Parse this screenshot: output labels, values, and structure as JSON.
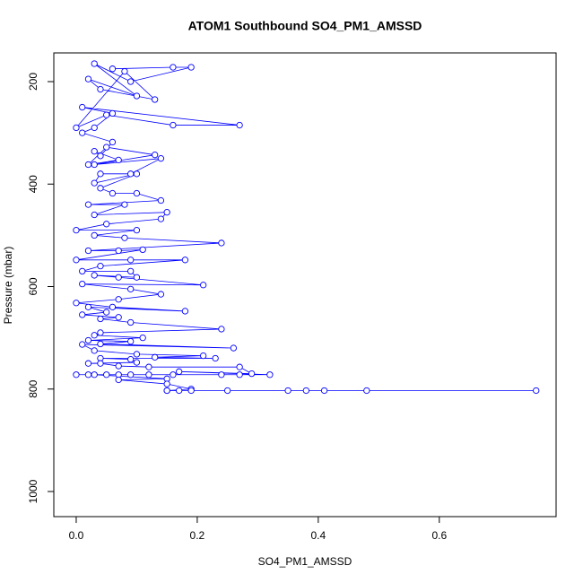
{
  "chart_data": {
    "type": "line-points",
    "title": "ATOM1 Southbound SO4_PM1_AMSSD",
    "xlabel": "SO4_PM1_AMSSD",
    "ylabel": "Pressure (mbar)",
    "color": "#0000ff",
    "xlim": [
      -0.037,
      0.793
    ],
    "ylim": [
      1049,
      144
    ],
    "xticks": [
      {
        "value": 0,
        "label": "0.0"
      },
      0.2,
      0.4,
      0.6
    ],
    "yticks": [
      200,
      400,
      600,
      800,
      1000
    ],
    "x": [
      0.06,
      0.16,
      0.19,
      0.09,
      0.03,
      0.1,
      0.02,
      0.04,
      0.13,
      0.08,
      0.0,
      0.05,
      0.16,
      0.27,
      0.01,
      0.06,
      0.03,
      0.01,
      0.06,
      0.04,
      0.03,
      0.07,
      0.02,
      0.05,
      0.13,
      0.03,
      0.14,
      0.09,
      0.04,
      0.03,
      0.1,
      0.04,
      0.06,
      0.1,
      0.14,
      0.02,
      0.08,
      0.03,
      0.15,
      0.14,
      0.05,
      0.0,
      0.1,
      0.03,
      0.08,
      0.24,
      0.02,
      0.07,
      0.11,
      0.0,
      0.09,
      0.18,
      0.04,
      0.01,
      0.09,
      0.1,
      0.03,
      0.07,
      0.21,
      0.01,
      0.09,
      0.14,
      0.07,
      0.0,
      0.06,
      0.18,
      0.02,
      0.05,
      0.01,
      0.07,
      0.04,
      0.09,
      0.24,
      0.04,
      0.03,
      0.11,
      0.02,
      0.09,
      0.04,
      0.26,
      0.01,
      0.03,
      0.1,
      0.21,
      0.13,
      0.23,
      0.04,
      0.09,
      0.1,
      0.02,
      0.04,
      0.07,
      0.12,
      0.27,
      0.29,
      0.17,
      0.32,
      0.27,
      0.24,
      0.16,
      0.12,
      0.07,
      0.02,
      0.0,
      0.05,
      0.09,
      0.03,
      0.15,
      0.07,
      0.15,
      0.19,
      0.15,
      0.17,
      0.25,
      0.35,
      0.38,
      0.41,
      0.48,
      0.76,
      0.19,
      0.15
    ],
    "y": [
      175,
      172,
      172,
      200,
      165,
      228,
      195,
      215,
      235,
      180,
      290,
      265,
      285,
      285,
      250,
      262,
      290,
      300,
      318,
      345,
      336,
      353,
      362,
      328,
      343,
      362,
      350,
      380,
      380,
      398,
      380,
      408,
      418,
      418,
      432,
      440,
      440,
      460,
      455,
      468,
      478,
      490,
      490,
      500,
      505,
      515,
      530,
      530,
      528,
      548,
      548,
      548,
      560,
      570,
      570,
      582,
      578,
      582,
      597,
      595,
      605,
      615,
      625,
      632,
      640,
      648,
      640,
      650,
      655,
      660,
      663,
      670,
      683,
      690,
      695,
      700,
      705,
      707,
      712,
      720,
      713,
      725,
      732,
      735,
      738,
      740,
      740,
      742,
      748,
      750,
      750,
      755,
      757,
      757,
      770,
      766,
      772,
      772,
      772,
      772,
      772,
      772,
      772,
      772,
      772,
      772,
      772,
      780,
      782,
      790,
      800,
      803,
      803,
      803,
      803,
      803,
      803,
      803,
      803,
      803,
      803
    ]
  }
}
